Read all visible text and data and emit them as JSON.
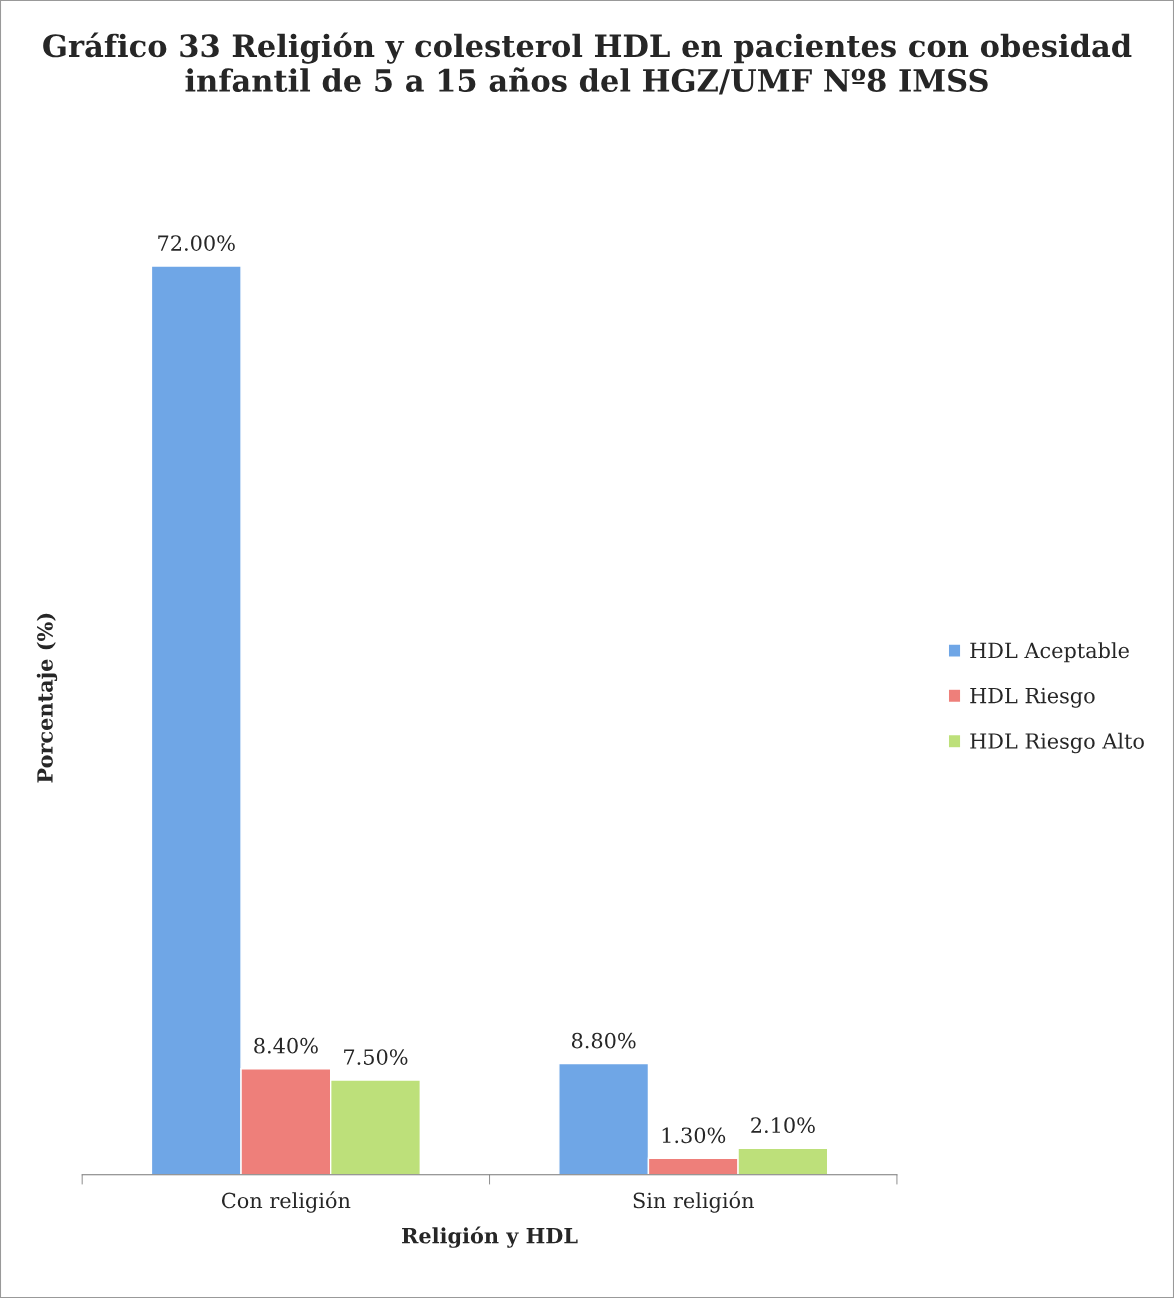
{
  "chart_data": {
    "type": "bar",
    "title": "Gráfico 33 Religión y colesterol HDL en pacientes con obesidad infantil de 5 a 15 años del HGZ/UMF Nº8 IMSS",
    "xlabel": "Religión y HDL",
    "ylabel": "Porcentaje (%)",
    "categories": [
      "Con religión",
      "Sin religión"
    ],
    "series": [
      {
        "name": "HDL Aceptable",
        "color": "#6fa6e6",
        "values": [
          72.0,
          8.8
        ],
        "value_labels": [
          "72.00%",
          "8.80%"
        ]
      },
      {
        "name": "HDL Riesgo",
        "color": "#ee7f7a",
        "values": [
          8.4,
          1.3
        ],
        "value_labels": [
          "8.40%",
          "1.30%"
        ]
      },
      {
        "name": "HDL Riesgo Alto",
        "color": "#bde07a",
        "values": [
          7.5,
          2.1
        ],
        "value_labels": [
          "7.50%",
          "2.10%"
        ]
      }
    ],
    "legend": "right",
    "grid": false
  }
}
